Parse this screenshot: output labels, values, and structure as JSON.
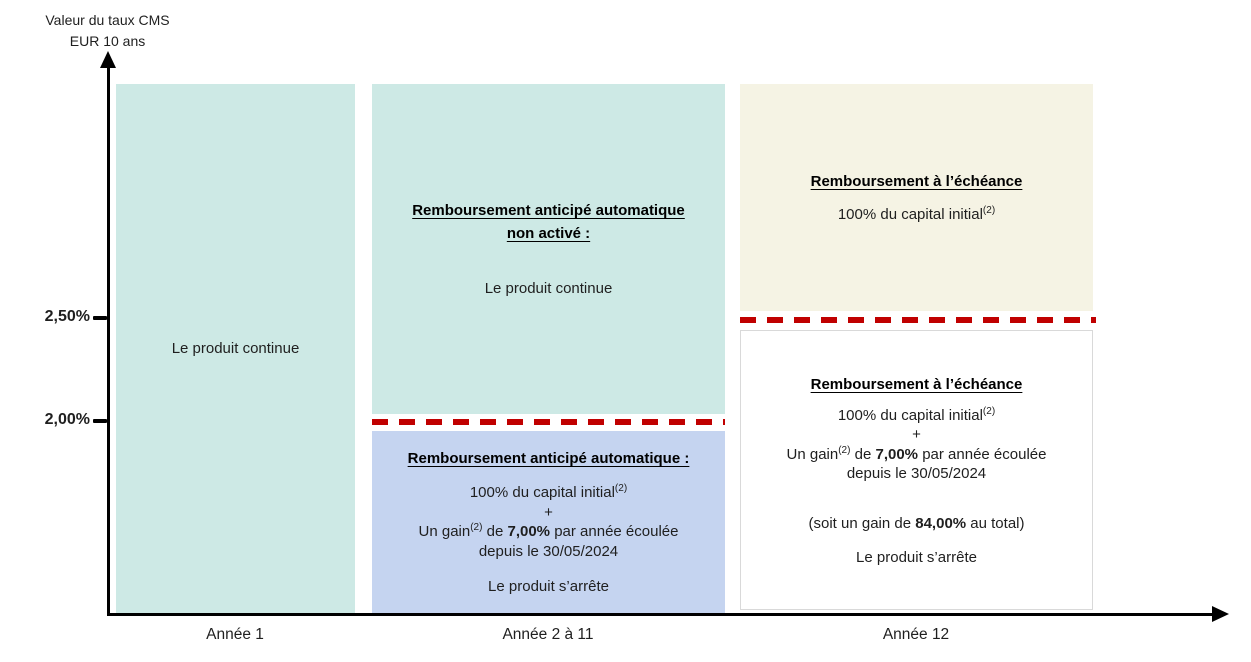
{
  "y_axis": {
    "label_line1": "Valeur du taux CMS",
    "label_line2": "EUR 10 ans",
    "tick_upper": "2,50%",
    "tick_lower": "2,00%"
  },
  "x_axis": {
    "label_col1": "Année 1",
    "label_col2": "Année 2 à 11",
    "label_col3": "Année 12"
  },
  "col1": {
    "box_continue": {
      "body": "Le produit continue"
    }
  },
  "col2": {
    "box_no_autocall": {
      "title_line1": "Remboursement anticipé automatique",
      "title_line2": "non activé :",
      "body": "Le produit continue"
    },
    "box_autocall": {
      "title": "Remboursement anticipé automatique :",
      "capital_text": "100% du capital initial",
      "capital_sup": "(2)",
      "plus": "+",
      "gain_prefix": "Un gain",
      "gain_sup": "(2)",
      "gain_mid": " de ",
      "gain_value": "7,00%",
      "gain_suffix": " par année écoulée",
      "gain_line2": "depuis le 30/05/2024",
      "stop": "Le produit s’arrête"
    }
  },
  "col3": {
    "box_maturity_above": {
      "title": "Remboursement à l’échéance",
      "capital_text": "100% du capital initial",
      "capital_sup": "(2)"
    },
    "box_maturity_below": {
      "title": "Remboursement à l’échéance",
      "capital_text": "100% du capital initial",
      "capital_sup": "(2)",
      "plus": "+",
      "gain_prefix": "Un gain",
      "gain_sup": "(2)",
      "gain_mid": " de ",
      "gain_value": "7,00%",
      "gain_suffix": " par année écoulée",
      "gain_line2": "depuis le 30/05/2024",
      "total_prefix": "(soit un gain de ",
      "total_value": "84,00%",
      "total_suffix": " au total)",
      "stop": "Le produit s’arrête"
    }
  },
  "colors": {
    "teal": "#cde9e5",
    "blue": "#c5d4f0",
    "cream": "#f5f3e4",
    "red_dashed": "#c00000"
  }
}
